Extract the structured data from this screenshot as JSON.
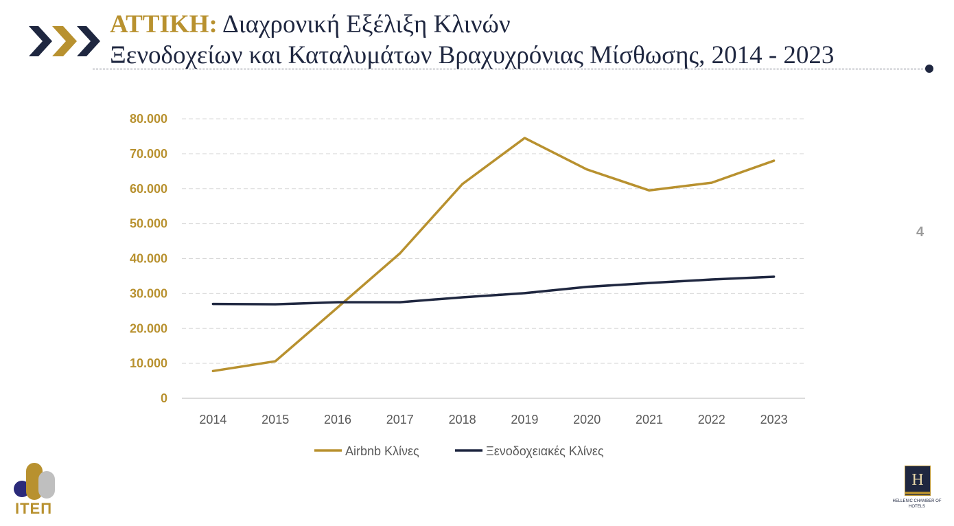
{
  "header": {
    "title_accent": "ΑΤΤΙΚΗ:",
    "title_line1": " Διαχρονική Εξέλιξη Κλινών",
    "title_line2": "Ξενοδοχείων και Καταλυμάτων Βραχυχρόνιας Μίσθωσης, 2014 - 2023",
    "icon": "triple-chevron-right-icon"
  },
  "page_number": "4",
  "logos": {
    "left_text": "ΙΤΕΠ",
    "right_letter": "H",
    "right_text": "HELLENIC CHAMBER OF HOTELS"
  },
  "colors": {
    "gold": "#b8912f",
    "navy": "#1f2740",
    "grid": "#d9d9d9",
    "tick_x": "#595959"
  },
  "chart_data": {
    "type": "line",
    "categories": [
      "2014",
      "2015",
      "2016",
      "2017",
      "2018",
      "2019",
      "2020",
      "2021",
      "2022",
      "2023"
    ],
    "series": [
      {
        "name": "Airbnb Κλίνες",
        "color": "#b8912f",
        "values": [
          7800,
          10600,
          26000,
          41500,
          61300,
          74500,
          65500,
          59500,
          61700,
          68000
        ]
      },
      {
        "name": "Ξενοδοχειακές Κλίνες",
        "color": "#1f2740",
        "values": [
          27000,
          26900,
          27500,
          27500,
          28900,
          30100,
          31900,
          33000,
          34000,
          34800
        ]
      }
    ],
    "ylim": [
      0,
      80000
    ],
    "yticks": [
      "0",
      "10.000",
      "20.000",
      "30.000",
      "40.000",
      "50.000",
      "60.000",
      "70.000",
      "80.000"
    ],
    "grid": true,
    "legend": "bottom"
  }
}
